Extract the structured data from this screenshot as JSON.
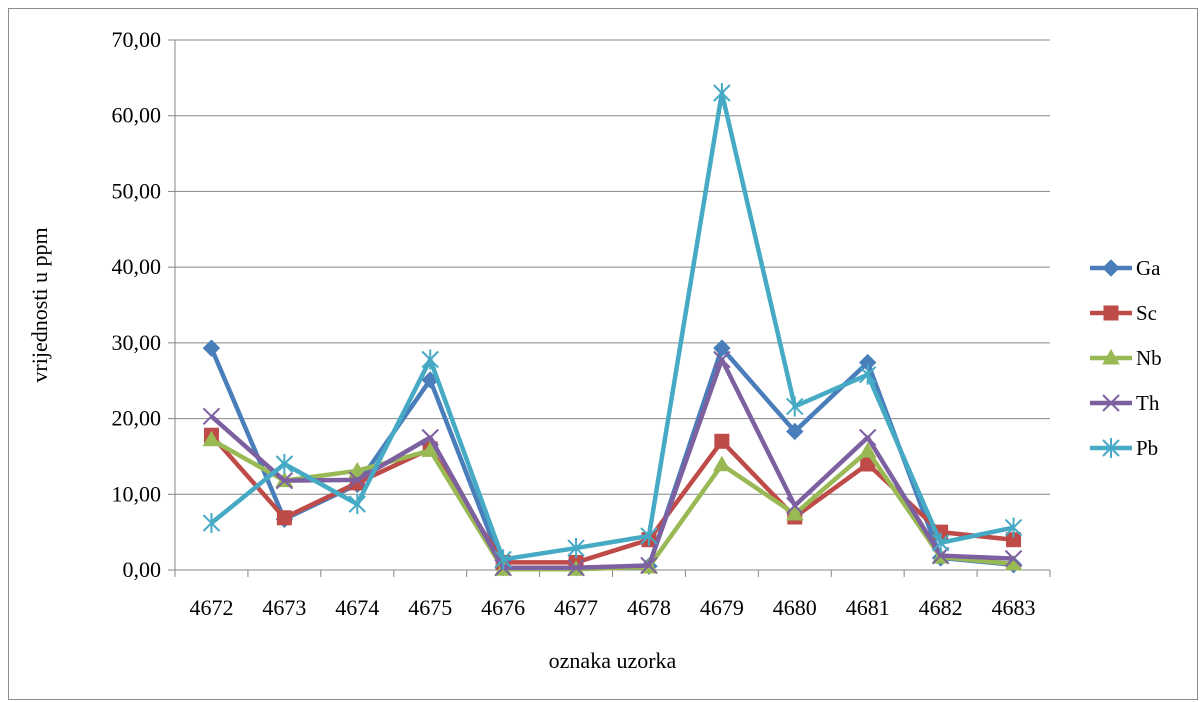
{
  "chart_data": {
    "type": "line",
    "title": "",
    "xlabel": "oznaka uzorka",
    "ylabel": "vrijednosti u ppm",
    "ylim": [
      0,
      70
    ],
    "yticks": [
      "0,00",
      "10,00",
      "20,00",
      "30,00",
      "40,00",
      "50,00",
      "60,00",
      "70,00"
    ],
    "grid": "horizontal",
    "legend_position": "right",
    "categories": [
      "4672",
      "4673",
      "4674",
      "4675",
      "4676",
      "4677",
      "4678",
      "4679",
      "4680",
      "4681",
      "4682",
      "4683"
    ],
    "series": [
      {
        "name": "Ga",
        "color": "#4a7ebb",
        "marker": "diamond",
        "values": [
          29.3,
          6.7,
          11.3,
          25.1,
          0.3,
          0.3,
          0.5,
          29.3,
          18.3,
          27.4,
          1.6,
          0.7
        ]
      },
      {
        "name": "Sc",
        "color": "#be4b48",
        "marker": "square",
        "values": [
          17.8,
          6.9,
          11.5,
          16.0,
          1.0,
          1.0,
          4.0,
          17.0,
          7.0,
          14.0,
          5.0,
          4.0
        ]
      },
      {
        "name": "Nb",
        "color": "#98b954",
        "marker": "triangle",
        "values": [
          17.2,
          11.8,
          13.1,
          15.8,
          0.1,
          0.1,
          0.4,
          13.9,
          7.4,
          15.7,
          1.7,
          0.8
        ]
      },
      {
        "name": "Th",
        "color": "#7d60a0",
        "marker": "x",
        "values": [
          20.3,
          11.8,
          11.9,
          17.5,
          0.3,
          0.3,
          0.6,
          27.8,
          8.5,
          17.5,
          1.9,
          1.5
        ]
      },
      {
        "name": "Pb",
        "color": "#46aac5",
        "marker": "star",
        "values": [
          6.2,
          14.0,
          8.7,
          27.8,
          1.4,
          2.9,
          4.5,
          63.0,
          21.6,
          25.8,
          3.6,
          5.6
        ]
      }
    ]
  }
}
